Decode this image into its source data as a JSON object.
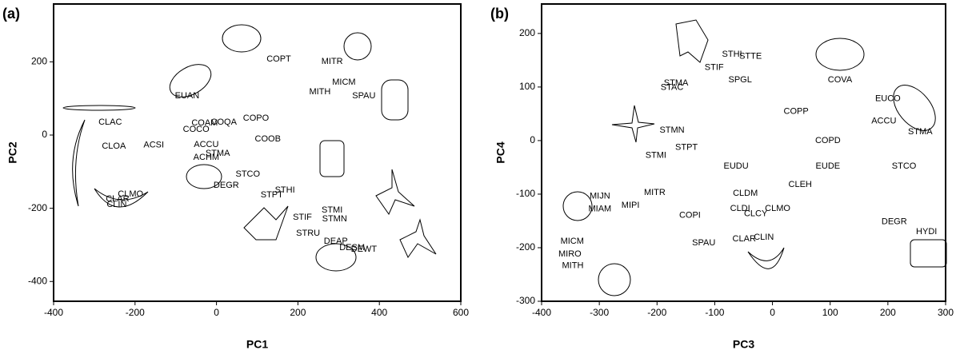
{
  "chart_data": [
    {
      "type": "scatter",
      "panel": "(a)",
      "x_label": "PC1",
      "y_label": "PC2",
      "xlim": [
        -400,
        600
      ],
      "ylim": [
        -454,
        358
      ],
      "xticks": [
        -400,
        -200,
        0,
        200,
        400,
        600
      ],
      "yticks": [
        -400,
        -200,
        0,
        200
      ],
      "point_labels": [
        "COPT",
        "MITR",
        "MICM",
        "MITH",
        "EUAN",
        "SPAU",
        "COAM",
        "COCO",
        "COQA",
        "COPO",
        "COOB",
        "CLAC",
        "CLOA",
        "ACSI",
        "ACCU",
        "STMA",
        "ACHM",
        "STCO",
        "DEGR",
        "STHI",
        "STPT",
        "STIF",
        "STRU",
        "STMI",
        "STMN",
        "DEAP",
        "DESM",
        "DEWT",
        "CLMO",
        "CLAR",
        "CLIN"
      ],
      "x": [
        153,
        284,
        313,
        254,
        -72,
        362,
        -29,
        -50,
        18,
        97,
        126,
        -261,
        -252,
        -154,
        -25,
        3,
        -25,
        77,
        24,
        168,
        136,
        211,
        225,
        284,
        290,
        293,
        333,
        362,
        -211,
        -243,
        -245
      ],
      "values": [
        207,
        201,
        144,
        118,
        107,
        107,
        33,
        15,
        35,
        46,
        -11,
        35,
        -31,
        -28,
        -26,
        -50,
        -61,
        -107,
        -138,
        -151,
        -164,
        -225,
        -269,
        -205,
        -229,
        -290,
        -308,
        -312,
        -162,
        -175,
        -190
      ]
    },
    {
      "type": "scatter",
      "panel": "(b)",
      "x_label": "PC3",
      "y_label": "PC4",
      "xlim": [
        -400,
        300
      ],
      "ylim": [
        -300,
        255
      ],
      "xticks": [
        -400,
        -300,
        -200,
        -100,
        0,
        100,
        200,
        300
      ],
      "yticks": [
        -300,
        -200,
        -100,
        0,
        100,
        200
      ],
      "point_labels": [
        "STHI",
        "STTE",
        "STIF",
        "SPGL",
        "STMA",
        "STAC",
        "COVA",
        "COPP",
        "EUCO",
        "ACCU",
        "STMA",
        "COPD",
        "STMN",
        "STPT",
        "STMI",
        "EUDU",
        "EUDE",
        "CLEH",
        "CLDM",
        "MITR",
        "CLDI",
        "CLMO",
        "CLCY",
        "COPI",
        "STCO",
        "DEGR",
        "HYDI",
        "SPAU",
        "CLAR",
        "CLIN",
        "MIJN",
        "MIPI",
        "MIAM",
        "MICM",
        "MIRO",
        "MITH"
      ],
      "x": [
        -70,
        -38,
        -101,
        -56,
        -167,
        -174,
        117,
        41,
        200,
        193,
        256,
        96,
        -174,
        -149,
        -202,
        -63,
        96,
        48,
        -47,
        -204,
        -56,
        9,
        -29,
        -143,
        228,
        211,
        267,
        -119,
        -49,
        -15,
        -299,
        -246,
        -299,
        -347,
        -351,
        -346
      ],
      "values": [
        161,
        157,
        136,
        113,
        107,
        99,
        113,
        54,
        78,
        36,
        16,
        0,
        19,
        -13,
        -28,
        -48,
        -48,
        -82,
        -99,
        -97,
        -127,
        -127,
        -137,
        -140,
        -48,
        -152,
        -170,
        -191,
        -184,
        -181,
        -104,
        -121,
        -128,
        -188,
        -212,
        -234
      ]
    }
  ]
}
